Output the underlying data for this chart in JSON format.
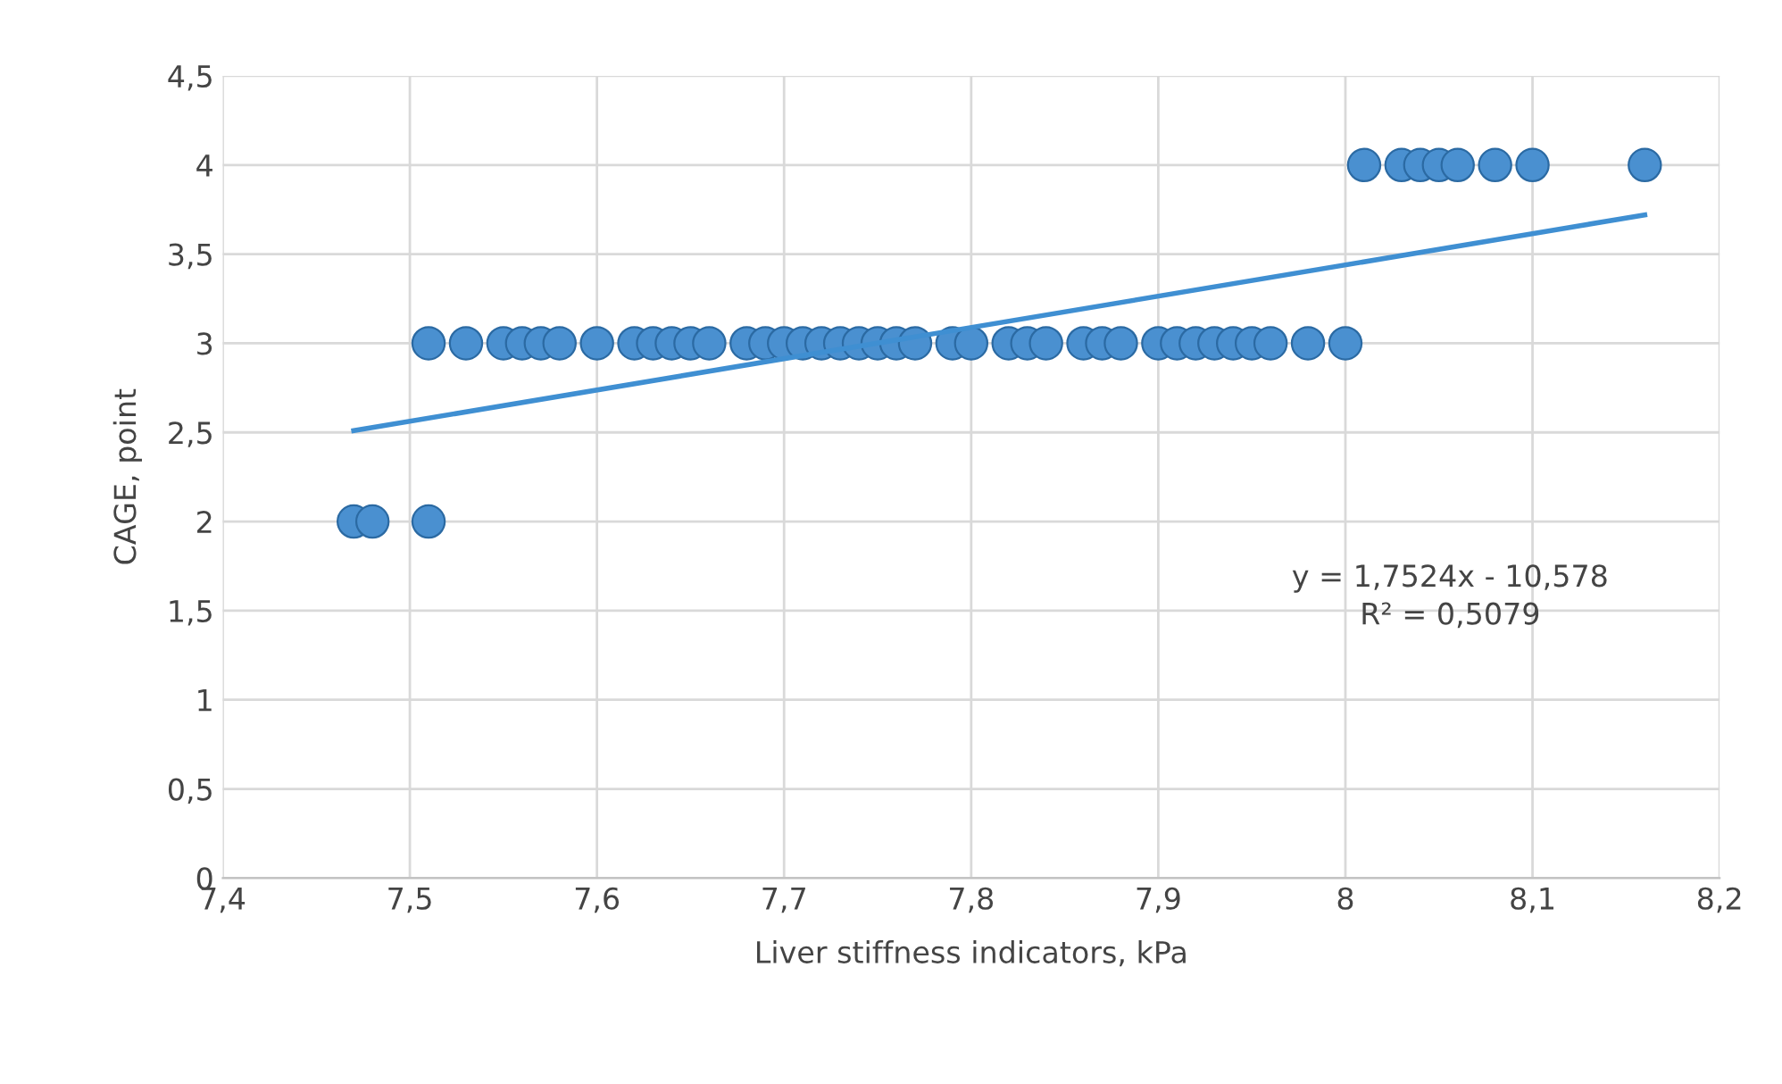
{
  "chart_data": {
    "type": "scatter",
    "xlabel": "Liver stiffness indicators, kPa",
    "ylabel": "CAGE, point",
    "xlim": [
      7.4,
      8.2
    ],
    "xticks": [
      {
        "value": 7.4,
        "label": "7,4"
      },
      {
        "value": 7.5,
        "label": "7,5"
      },
      {
        "value": 7.6,
        "label": "7,6"
      },
      {
        "value": 7.7,
        "label": "7,7"
      },
      {
        "value": 7.8,
        "label": "7,8"
      },
      {
        "value": 7.9,
        "label": "7,9"
      },
      {
        "value": 8,
        "label": "8"
      },
      {
        "value": 8.1,
        "label": "8,1"
      },
      {
        "value": 8.2,
        "label": "8,2"
      }
    ],
    "ylim": [
      0,
      4.5
    ],
    "yticks": [
      0,
      {
        "value": 0.5,
        "label": "0,5"
      },
      1,
      {
        "value": 1.5,
        "label": "1,5"
      },
      2,
      {
        "value": 2.5,
        "label": "2,5"
      },
      3,
      {
        "value": 3.5,
        "label": "3,5"
      },
      4,
      {
        "value": 4.5,
        "label": "4,5"
      }
    ],
    "grid": true,
    "series": [
      {
        "color": "#4a90d0",
        "marker": "circle",
        "x": [
          7.47,
          7.48,
          7.51,
          7.51,
          7.53,
          7.55,
          7.56,
          7.57,
          7.58,
          7.6,
          7.62,
          7.63,
          7.64,
          7.65,
          7.66,
          7.68,
          7.69,
          7.7,
          7.71,
          7.72,
          7.73,
          7.74,
          7.75,
          7.76,
          7.77,
          7.79,
          7.8,
          7.82,
          7.83,
          7.84,
          7.86,
          7.87,
          7.88,
          7.9,
          7.91,
          7.92,
          7.93,
          7.94,
          7.95,
          7.96,
          7.98,
          8.0,
          8.01,
          8.03,
          8.04,
          8.05,
          8.06,
          8.08,
          8.1,
          8.16
        ],
        "values": [
          2,
          2,
          2,
          3,
          3,
          3,
          3,
          3,
          3,
          3,
          3,
          3,
          3,
          3,
          3,
          3,
          3,
          3,
          3,
          3,
          3,
          3,
          3,
          3,
          3,
          3,
          3,
          3,
          3,
          3,
          3,
          3,
          3,
          3,
          3,
          3,
          3,
          3,
          3,
          3,
          3,
          3,
          4,
          4,
          4,
          4,
          4,
          4,
          4,
          4
        ]
      },
      {
        "type": "line",
        "color": "#3f8fd2",
        "x": [
          7.47,
          8.16
        ],
        "values": [
          2.51,
          3.72
        ]
      }
    ],
    "annotations": [
      "y = 1,7524x - 10,578\nR² = 0,5079"
    ]
  }
}
